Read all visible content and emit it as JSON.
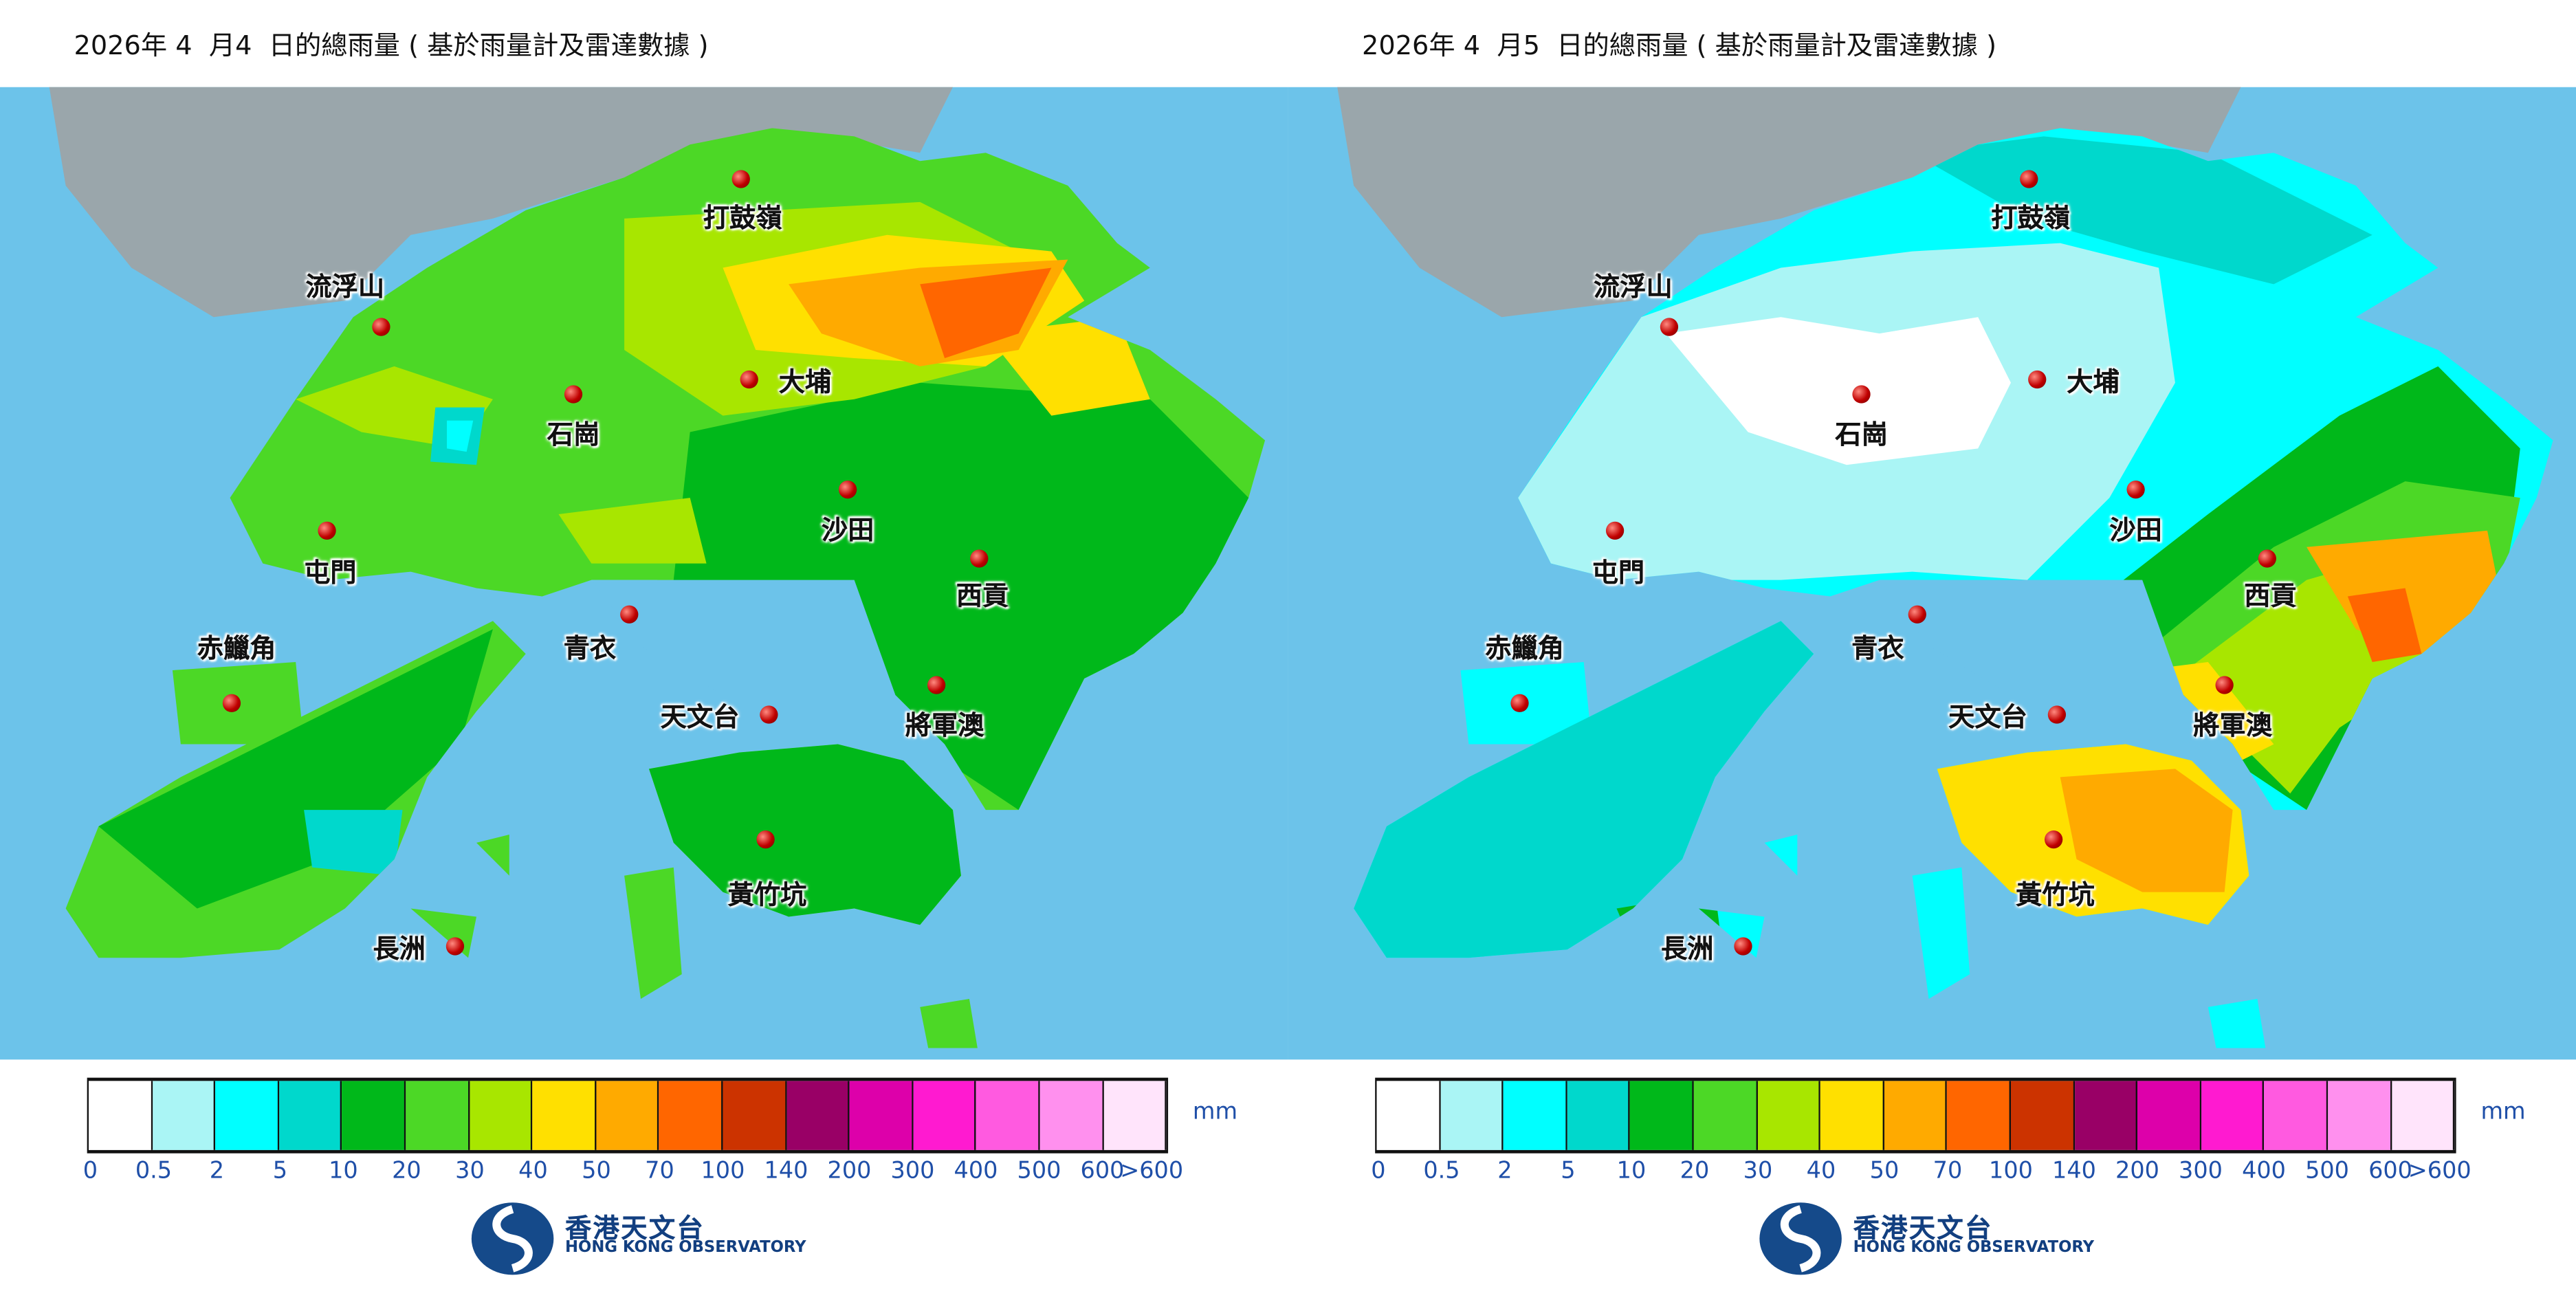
{
  "panels": [
    {
      "title": "2026年 4  月4  日的總雨量 ( 基於雨量計及雷達數據 )"
    },
    {
      "title": "2026年 4  月5  日的總雨量 ( 基於雨量計及雷達數據 )"
    }
  ],
  "stations": [
    "打鼓嶺",
    "流浮山",
    "大埔",
    "石崗",
    "沙田",
    "屯門",
    "西貢",
    "青衣",
    "赤鱲角",
    "將軍澳",
    "天文台",
    "黃竹坑",
    "長洲"
  ],
  "legend": {
    "unit": "mm",
    "colors": [
      "#ffffff",
      "#aaf5f5",
      "#00ffff",
      "#00d8cc",
      "#00b81a",
      "#4cd826",
      "#a8e600",
      "#ffe000",
      "#ffaa00",
      "#ff6600",
      "#cc3300",
      "#990066",
      "#dd00aa",
      "#ff1ad0",
      "#ff5ae0",
      "#ff90ee",
      "#ffe4fb"
    ],
    "ticks": [
      "0",
      "0.5",
      "2",
      "5",
      "10",
      "20",
      "30",
      "40",
      "50",
      "70",
      "100",
      "140",
      "200",
      "300",
      "400",
      "500",
      "600",
      ">600"
    ]
  },
  "logo": {
    "zh": "香港天文台",
    "en": "HONG KONG OBSERVATORY"
  },
  "colors": {
    "sea": "#6cc3ea",
    "urban": "#9aa6ab",
    "marker": "#c00000"
  }
}
